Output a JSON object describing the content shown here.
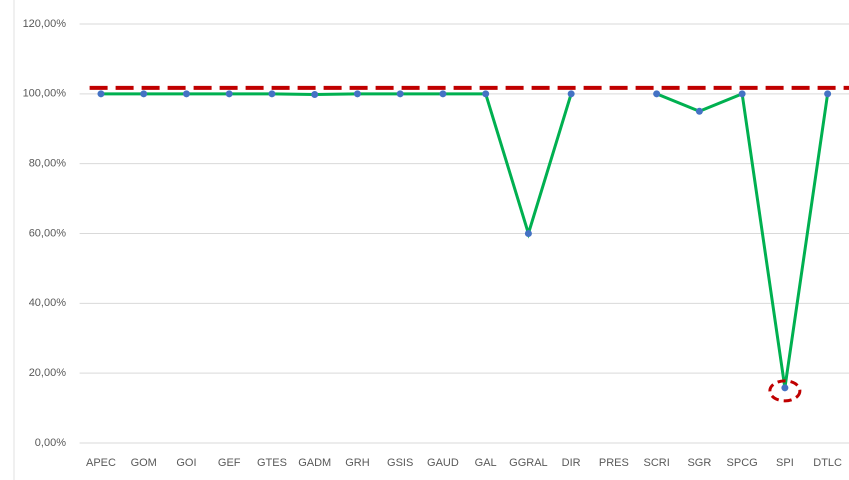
{
  "chart_data": {
    "type": "line",
    "categories": [
      "APEC",
      "GOM",
      "GOI",
      "GEF",
      "GTES",
      "GADM",
      "GRH",
      "GSIS",
      "GAUD",
      "GAL",
      "GGRAL",
      "DIR",
      "PRES",
      "SCRI",
      "SGR",
      "SPCG",
      "SPI",
      "DTLC"
    ],
    "series": [
      {
        "color": "#00b050",
        "marker_color": "#4472c4",
        "values": [
          100,
          100,
          100,
          100,
          100,
          99.8,
          100,
          100,
          100,
          100,
          60,
          100,
          null,
          100,
          95,
          100,
          15.8,
          100
        ]
      }
    ],
    "reference_line": {
      "value": 101.7,
      "color": "#c00000"
    },
    "highlight": {
      "index": 16,
      "color": "#c00000"
    },
    "ylim": [
      0,
      120
    ],
    "yticks": [
      {
        "value": 0,
        "label": "0,00%"
      },
      {
        "value": 20,
        "label": "20,00%"
      },
      {
        "value": 40,
        "label": "40,00%"
      },
      {
        "value": 60,
        "label": "60,00%"
      },
      {
        "value": 80,
        "label": "80,00%"
      },
      {
        "value": 100,
        "label": "100,00%"
      },
      {
        "value": 120,
        "label": "120,00%"
      }
    ],
    "grid": true
  }
}
